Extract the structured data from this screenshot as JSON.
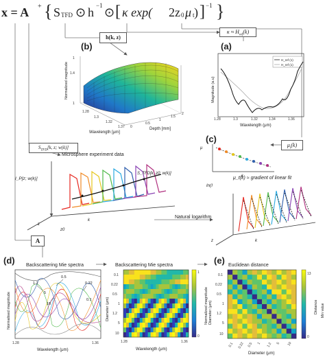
{
  "equation": {
    "lhs": "x = A",
    "superscript": "+",
    "part1": "S",
    "part1_sub": "TFD",
    "odot": "⊙",
    "h": "h",
    "neg1": "−1",
    "kappa_exp": "κ exp(",
    "two_z0_mu": "2z",
    "mu_sub": "0",
    "mu": "μ",
    "mu_sub2": "t",
    "close": ")",
    "close_bracket": "]",
    "neg1_outer": "−1",
    "brace_close": "}"
  },
  "labels": {
    "h_kz": "h(k, z)",
    "kappa_eq": "κ ≈ H",
    "kappa_sub": "ref",
    "kappa_arg": "(k)",
    "mu_t_box": "μ",
    "mu_t_sub": "t",
    "mu_t_arg": "(k)",
    "stfd_box": "S",
    "stfd_sub": "TFD",
    "stfd_arg": "[k, z",
    "stfd_arg2": "; w(k)]",
    "microsphere": "Microsphere experiment data",
    "natural_log": "Natural logarithm",
    "A_box": "A",
    "backscattering_mie_left": "Backscattering Mie spectra",
    "backscattering_mie_right": "Backscattering Mie spectra",
    "euclidean": "Euclidean distance",
    "mu_t_k": "μ",
    "gradient_linear": "μ_t(k) ≈ gradient of linear fit",
    "ln_label": "ln(I",
    "I_p_label": "I_P[z; w(k)]",
    "S_tfd_label": "S_TFD[k, z0; w(k)]",
    "k_label": "k",
    "z_label": "z",
    "z0_label": "z0"
  },
  "panels": {
    "a": {
      "letter": "(a)",
      "ylabel": "Magnitude (a.u)",
      "xlabel": "Wavelength (μm)",
      "legend": [
        "H_ref (1)",
        "H_ref (1)"
      ],
      "xticks": [
        "1.28",
        "1.3",
        "1.32",
        "1.34",
        "1.36"
      ]
    },
    "b": {
      "letter": "(b)",
      "zlabel": "Normalized magnitude",
      "xlabel": "Wavelength [μm]",
      "ylabel": "Depth [mm]",
      "xticks": [
        "1.28",
        "1.3",
        "1.32",
        "1.34",
        "1.36",
        "1.37"
      ],
      "yticks": [
        "0",
        "0.5",
        "1",
        "1.5",
        "2"
      ],
      "zticks": [
        "1.8",
        "1.6",
        "1.4",
        "1.2",
        "1"
      ]
    },
    "c": {
      "letter": "(c)"
    },
    "d": {
      "letter": "(d)",
      "ylabel": "Normalised magnitude",
      "xlabel": "Wavelength (μm)",
      "xticks": [
        "1.28",
        "1.36"
      ],
      "annotations": [
        "0.5",
        "1.2",
        "0.22",
        "0.1",
        "10",
        "5"
      ]
    },
    "heat1": {
      "ylabel": "Diameter (μm)",
      "xlabel": "Wavelength (μm)",
      "cbar_label": "Normalized magnitude",
      "yticks": [
        "0.1",
        "0.22",
        "0.5",
        "1",
        "1.2",
        "5",
        "10"
      ],
      "xticks": [
        "1.28",
        "1.36"
      ],
      "cbar_ticks": [
        "1",
        "0"
      ]
    },
    "e": {
      "letter": "(e)",
      "ylabel": "Diameter (μm)",
      "xlabel": "Diameter (μm)",
      "cbar_label": "Distance",
      "cbar_ticks": [
        "13",
        "0"
      ],
      "yticks": [
        "0.1",
        "0.22",
        "0.5",
        "1",
        "1.2",
        "5",
        "10"
      ],
      "xticks": [
        "0.1",
        "0.22",
        "0.5",
        "1",
        "1.2",
        "5",
        "10"
      ],
      "side_label": "Min value"
    }
  },
  "colors": {
    "grid_line": "#888888",
    "arrow": "#555555",
    "curve_colors": [
      "#e6261f",
      "#f08a24",
      "#e5c619",
      "#4db848",
      "#29a9e0",
      "#2f5fad",
      "#8a43b3",
      "#b0307f"
    ]
  }
}
